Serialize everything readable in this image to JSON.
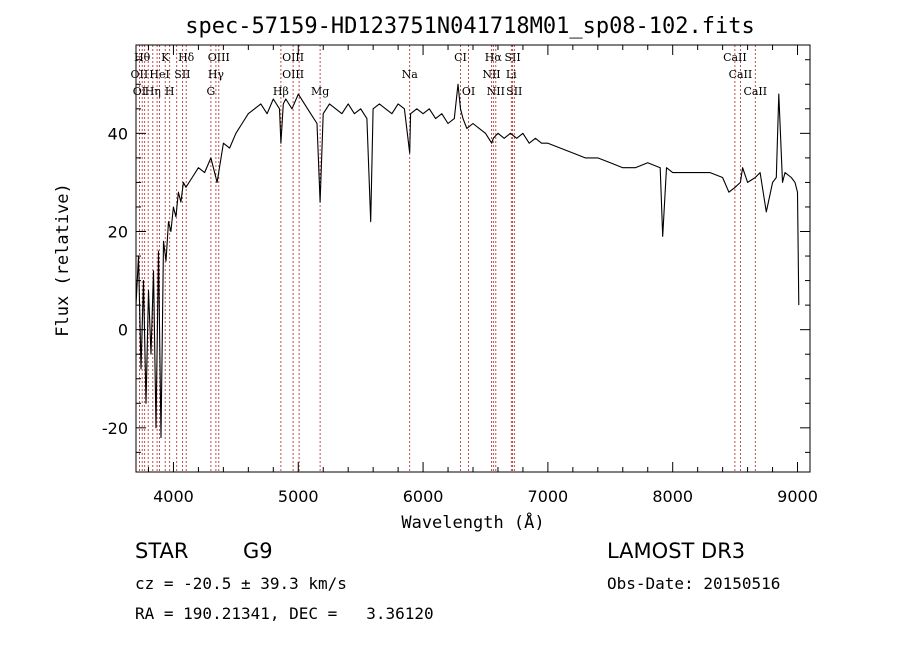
{
  "chart_data": {
    "type": "line",
    "title": "spec-57159-HD123751N041718M01_sp08-102.fits",
    "xlabel": "Wavelength (Å)",
    "ylabel": "Flux (relative)",
    "xlim": [
      3700,
      9100
    ],
    "ylim": [
      -29,
      58
    ],
    "x_ticks": [
      4000,
      5000,
      6000,
      7000,
      8000,
      9000
    ],
    "y_ticks": [
      -20,
      0,
      20,
      40
    ],
    "series": [
      {
        "name": "flux",
        "x": [
          3700,
          3720,
          3740,
          3760,
          3780,
          3800,
          3820,
          3840,
          3860,
          3880,
          3900,
          3920,
          3940,
          3960,
          3980,
          4000,
          4020,
          4040,
          4060,
          4080,
          4100,
          4150,
          4200,
          4250,
          4300,
          4350,
          4400,
          4450,
          4500,
          4550,
          4600,
          4650,
          4700,
          4750,
          4800,
          4850,
          4861,
          4880,
          4900,
          4950,
          5000,
          5050,
          5100,
          5150,
          5175,
          5200,
          5250,
          5300,
          5350,
          5400,
          5450,
          5500,
          5550,
          5580,
          5600,
          5650,
          5700,
          5750,
          5800,
          5850,
          5893,
          5900,
          5950,
          6000,
          6050,
          6100,
          6150,
          6200,
          6250,
          6280,
          6300,
          6320,
          6350,
          6400,
          6450,
          6500,
          6550,
          6563,
          6600,
          6650,
          6700,
          6750,
          6800,
          6850,
          6900,
          6950,
          7000,
          7100,
          7200,
          7300,
          7400,
          7500,
          7600,
          7700,
          7800,
          7900,
          7920,
          7950,
          8000,
          8100,
          8200,
          8300,
          8400,
          8450,
          8500,
          8542,
          8560,
          8600,
          8662,
          8700,
          8750,
          8800,
          8830,
          8850,
          8880,
          8900,
          8950,
          8980,
          9000,
          9010
        ],
        "y": [
          5,
          15,
          -8,
          10,
          -15,
          8,
          -5,
          12,
          -20,
          16,
          -22,
          18,
          14,
          22,
          20,
          25,
          23,
          28,
          26,
          30,
          29,
          31,
          33,
          32,
          35,
          30,
          38,
          37,
          40,
          42,
          44,
          45,
          46,
          44,
          47,
          45,
          38,
          46,
          47,
          45,
          48,
          46,
          44,
          42,
          26,
          44,
          46,
          45,
          44,
          46,
          44,
          45,
          43,
          22,
          45,
          46,
          45,
          44,
          46,
          45,
          36,
          44,
          45,
          44,
          45,
          43,
          44,
          42,
          43,
          50,
          45,
          43,
          41,
          42,
          41,
          40,
          38,
          39,
          40,
          39,
          40,
          39,
          40,
          38,
          39,
          38,
          38,
          37,
          36,
          35,
          35,
          34,
          33,
          33,
          34,
          33,
          19,
          33,
          32,
          32,
          32,
          32,
          31,
          28,
          29,
          30,
          33,
          30,
          31,
          32,
          24,
          30,
          31,
          48,
          30,
          32,
          31,
          30,
          28,
          5
        ]
      }
    ],
    "line_wavelengths": [
      3727,
      3750,
      3770,
      3798,
      3835,
      3869,
      3889,
      3934,
      3970,
      4026,
      4072,
      4102,
      4300,
      4340,
      4363,
      4861,
      4959,
      5007,
      5175,
      5893,
      6300,
      6364,
      6548,
      6563,
      6583,
      6707,
      6717,
      6731,
      8498,
      8542,
      8662
    ],
    "line_labels": [
      {
        "text": "Hθ",
        "x": 3750,
        "row": 0
      },
      {
        "text": "K",
        "x": 3934,
        "row": 0
      },
      {
        "text": "Hδ",
        "x": 4102,
        "row": 0
      },
      {
        "text": "OIII",
        "x": 4363,
        "row": 0
      },
      {
        "text": "OIII",
        "x": 4959,
        "row": 0
      },
      {
        "text": "CI",
        "x": 6300,
        "row": 0
      },
      {
        "text": "Hα",
        "x": 6563,
        "row": 0
      },
      {
        "text": "SII",
        "x": 6717,
        "row": 0
      },
      {
        "text": "CaII",
        "x": 8498,
        "row": 0
      },
      {
        "text": "OII",
        "x": 3727,
        "row": 1
      },
      {
        "text": "HeI",
        "x": 3889,
        "row": 1
      },
      {
        "text": "SII",
        "x": 4072,
        "row": 1
      },
      {
        "text": "Hγ",
        "x": 4340,
        "row": 1
      },
      {
        "text": "OIII",
        "x": 4959,
        "row": 1
      },
      {
        "text": "Na",
        "x": 5893,
        "row": 1
      },
      {
        "text": "NII",
        "x": 6548,
        "row": 1
      },
      {
        "text": "Li",
        "x": 6707,
        "row": 1
      },
      {
        "text": "CaII",
        "x": 8542,
        "row": 1
      },
      {
        "text": "OI",
        "x": 3727,
        "row": 2
      },
      {
        "text": "Hη",
        "x": 3835,
        "row": 2
      },
      {
        "text": "H",
        "x": 3970,
        "row": 2
      },
      {
        "text": "G",
        "x": 4300,
        "row": 2
      },
      {
        "text": "Hβ",
        "x": 4861,
        "row": 2
      },
      {
        "text": "Mg",
        "x": 5175,
        "row": 2
      },
      {
        "text": "OI",
        "x": 6364,
        "row": 2
      },
      {
        "text": "NII",
        "x": 6583,
        "row": 2
      },
      {
        "text": "SII",
        "x": 6731,
        "row": 2
      },
      {
        "text": "CaII",
        "x": 8662,
        "row": 2
      }
    ]
  },
  "footer": {
    "object_class": "STAR",
    "subclass": "G9",
    "survey": "LAMOST DR3",
    "redshift": "cz = -20.5 ± 39.3 km/s",
    "obs_date": "Obs-Date: 20150516",
    "coords": "RA = 190.21341, DEC =   3.36120"
  },
  "colors": {
    "line_marker": "#b22222",
    "spectrum": "#000000"
  }
}
